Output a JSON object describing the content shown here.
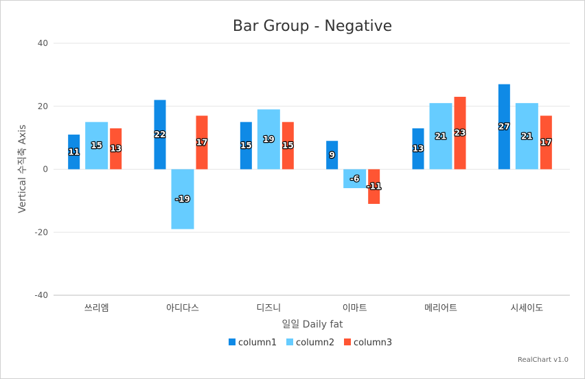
{
  "chart_data": {
    "type": "bar",
    "title": "Bar Group - Negative",
    "xlabel": "일일 Daily fat",
    "ylabel": "Vertical 수직축 Axis",
    "categories": [
      "쓰리엠",
      "아디다스",
      "디즈니",
      "이마트",
      "메리어트",
      "시세이도"
    ],
    "series": [
      {
        "name": "column1",
        "color": "#0f8ae6",
        "values": [
          11,
          22,
          15,
          9,
          13,
          27
        ]
      },
      {
        "name": "column2",
        "color": "#66ccff",
        "values": [
          15,
          -19,
          19,
          -6,
          21,
          21
        ]
      },
      {
        "name": "column3",
        "color": "#ff5533",
        "values": [
          13,
          17,
          15,
          -11,
          23,
          17
        ]
      }
    ],
    "ylim": [
      -40,
      40
    ],
    "yticks": [
      -40,
      -20,
      0,
      20,
      40
    ],
    "grid": true,
    "data_labels": true,
    "legend_position": "bottom",
    "credit": "RealChart v1.0"
  }
}
